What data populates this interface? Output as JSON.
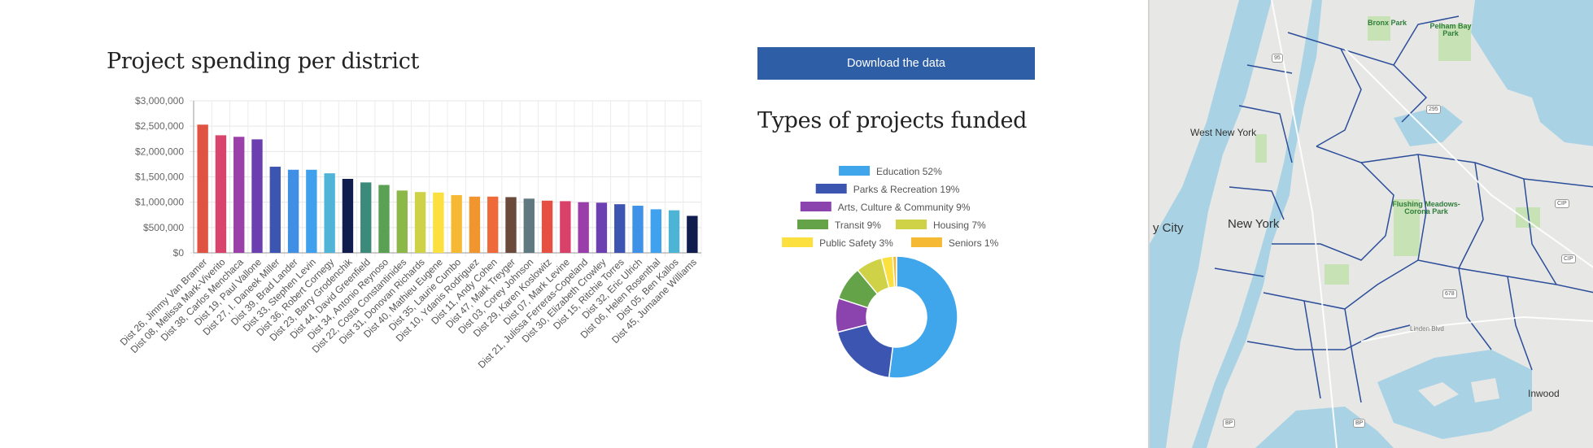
{
  "left": {
    "title": "Project spending per district"
  },
  "right": {
    "download_label": "Download the data",
    "title": "Types of projects funded"
  },
  "chart_data": [
    {
      "type": "bar",
      "title": "",
      "ylim": [
        0,
        3000000
      ],
      "y_ticks": [
        "$0",
        "$500,000",
        "$1,000,000",
        "$1,500,000",
        "$2,000,000",
        "$2,500,000",
        "$3,000,000"
      ],
      "categories": [
        "Dist 26,  Jimmy Van Bramer",
        "Dist 08,  Melissa Mark-Viverito",
        "Dist 38,  Carlos Menchaca",
        "Dist 19,  Paul Vallone",
        "Dist 27,  I. Daneek Miller",
        "Dist 39,  Brad Lander",
        "Dist 33,  Stephen Levin",
        "Dist 36,  Robert Cornegy",
        "Dist 23,  Barry Grodenchik",
        "Dist 44,  David Greenfield",
        "Dist 34,  Antonio Reynoso",
        "Dist 22,  Costa Constantinides",
        "Dist 31,  Donovan Richards",
        "Dist 40,  Mathieu Eugene",
        "Dist 35,  Laurie Cumbo",
        "Dist 10,  Ydanis Rodriguez",
        "Dist 11,  Andy Cohen",
        "Dist 47,  Mark Treyger",
        "Dist 03,  Corey Johnson",
        "Dist 29,  Karen Koslowitz",
        "Dist 07,  Mark Levine",
        "Dist 21,  Julissa Ferreras-Copeland",
        "Dist 30,  Elizabeth Crowley",
        "Dist 15,  Ritchie Torres",
        "Dist 32,  Eric Ulrich",
        "Dist 06,  Helen Rosenthal",
        "Dist 05,  Ben Kallos",
        "Dist 45,  Jumaane Williams"
      ],
      "values": [
        2530000,
        2320000,
        2290000,
        2240000,
        1700000,
        1640000,
        1640000,
        1570000,
        1460000,
        1390000,
        1340000,
        1230000,
        1200000,
        1190000,
        1140000,
        1110000,
        1110000,
        1100000,
        1070000,
        1030000,
        1020000,
        1000000,
        990000,
        960000,
        930000,
        860000,
        840000,
        730000
      ],
      "colors": [
        "#e05343",
        "#d9446c",
        "#9b3fab",
        "#6b3fb0",
        "#3c55b0",
        "#3f8fe5",
        "#3fa0ee",
        "#4fb4d6",
        "#101d4e",
        "#3c8a7a",
        "#5aa154",
        "#8bb848",
        "#cfd246",
        "#fbe03f",
        "#f5b934",
        "#f1962f",
        "#ef6a3a",
        "#6b4a3b",
        "#607880",
        "#e55043",
        "#d9416a",
        "#9a3faa",
        "#6c40b1",
        "#3d55b0",
        "#3f92e7",
        "#40a2ee",
        "#4db4d5",
        "#101d4e"
      ]
    },
    {
      "type": "pie",
      "title": "",
      "legend_position": "top",
      "slices": [
        {
          "label": "Education 52%",
          "value": 52,
          "color": "#3fa6ec"
        },
        {
          "label": "Parks & Recreation 19%",
          "value": 19,
          "color": "#3c55b0"
        },
        {
          "label": "Arts, Culture & Community 9%",
          "value": 9,
          "color": "#8b44ad"
        },
        {
          "label": "Transit 9%",
          "value": 9,
          "color": "#64a347"
        },
        {
          "label": "Housing 7%",
          "value": 7,
          "color": "#cfd246"
        },
        {
          "label": "Public Safety 3%",
          "value": 3,
          "color": "#fbe03f"
        },
        {
          "label": "Seniors 1%",
          "value": 1,
          "color": "#f5b934"
        }
      ]
    }
  ],
  "map": {
    "labels": [
      "West New York",
      "New York",
      "y City",
      "Inwood"
    ],
    "parks": [
      "Bronx Park",
      "Pelham Bay Park",
      "Flushing Meadows-Corona Park"
    ],
    "road_labels": [
      "Linden Blvd"
    ],
    "shields": [
      "95",
      "295",
      "CIP",
      "CIP",
      "678",
      "BP",
      "BP"
    ],
    "water_color": "#a9d3e5",
    "land_color": "#e7e7e5",
    "district_line_color": "#2b4d9a"
  }
}
